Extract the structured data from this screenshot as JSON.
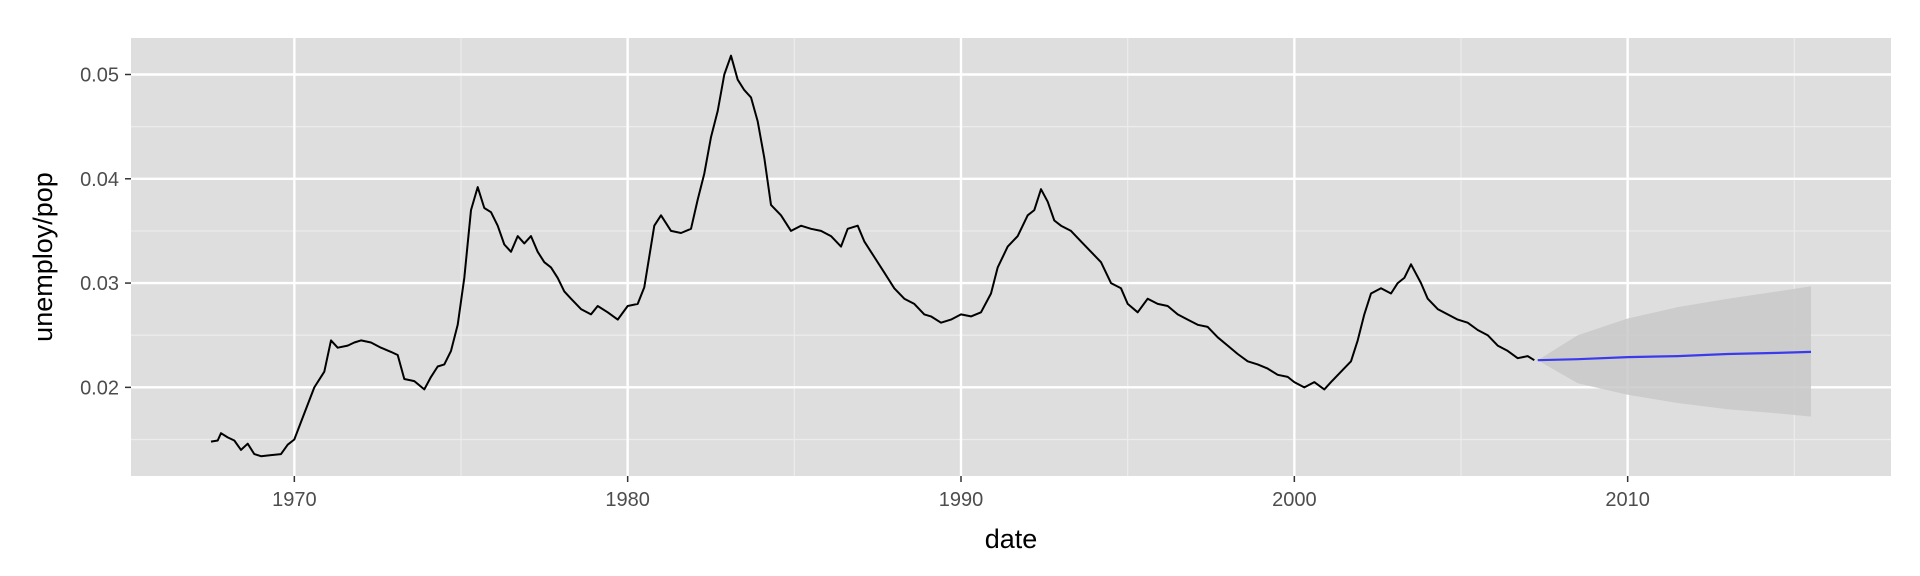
{
  "chart_data": {
    "type": "line",
    "title": "",
    "xlabel": "date",
    "ylabel": "unemploy/pop",
    "xlim": [
      1965.1,
      2017.9
    ],
    "ylim": [
      0.0115,
      0.0535
    ],
    "x_ticks": [
      1970,
      1980,
      1990,
      2000,
      2010
    ],
    "y_ticks": [
      0.02,
      0.03,
      0.04,
      0.05
    ],
    "x_tick_labels": [
      "1970",
      "1980",
      "1990",
      "2000",
      "2010"
    ],
    "y_tick_labels": [
      "0.02",
      "0.03",
      "0.04",
      "0.05"
    ],
    "grid": true,
    "legend": "none",
    "colors": {
      "panel": "#dedede",
      "grid_major": "#ffffff",
      "grid_minor": "#ececec",
      "observed": "#000000",
      "forecast": "#3b3bec",
      "forecast_band": "#c9c9c9"
    },
    "series": [
      {
        "role": "observed",
        "x": [
          1967.5,
          1967.7,
          1967.8,
          1968.0,
          1968.2,
          1968.4,
          1968.6,
          1968.8,
          1969.0,
          1969.3,
          1969.6,
          1969.8,
          1970.0,
          1970.3,
          1970.6,
          1970.9,
          1971.1,
          1971.3,
          1971.6,
          1971.8,
          1972.0,
          1972.3,
          1972.6,
          1972.9,
          1973.1,
          1973.3,
          1973.6,
          1973.9,
          1974.1,
          1974.3,
          1974.5,
          1974.7,
          1974.9,
          1975.1,
          1975.3,
          1975.5,
          1975.7,
          1975.9,
          1976.1,
          1976.3,
          1976.5,
          1976.7,
          1976.9,
          1977.1,
          1977.3,
          1977.5,
          1977.7,
          1977.9,
          1978.1,
          1978.3,
          1978.6,
          1978.9,
          1979.1,
          1979.4,
          1979.7,
          1980.0,
          1980.3,
          1980.5,
          1980.8,
          1981.0,
          1981.3,
          1981.6,
          1981.9,
          1982.1,
          1982.3,
          1982.5,
          1982.7,
          1982.9,
          1983.1,
          1983.3,
          1983.5,
          1983.7,
          1983.9,
          1984.1,
          1984.3,
          1984.6,
          1984.9,
          1985.2,
          1985.5,
          1985.8,
          1986.1,
          1986.4,
          1986.6,
          1986.9,
          1987.1,
          1987.4,
          1987.7,
          1988.0,
          1988.3,
          1988.6,
          1988.9,
          1989.1,
          1989.4,
          1989.7,
          1990.0,
          1990.3,
          1990.6,
          1990.9,
          1991.1,
          1991.4,
          1991.7,
          1992.0,
          1992.2,
          1992.4,
          1992.6,
          1992.8,
          1993.0,
          1993.3,
          1993.6,
          1993.9,
          1994.2,
          1994.5,
          1994.8,
          1995.0,
          1995.3,
          1995.6,
          1995.9,
          1996.2,
          1996.5,
          1996.8,
          1997.1,
          1997.4,
          1997.7,
          1998.0,
          1998.3,
          1998.6,
          1998.9,
          1999.2,
          1999.5,
          1999.8,
          2000.0,
          2000.3,
          2000.6,
          2000.9,
          2001.1,
          2001.4,
          2001.7,
          2001.9,
          2002.1,
          2002.3,
          2002.6,
          2002.9,
          2003.1,
          2003.3,
          2003.5,
          2003.8,
          2004.0,
          2004.3,
          2004.6,
          2004.9,
          2005.2,
          2005.5,
          2005.8,
          2006.1,
          2006.4,
          2006.7,
          2007.0,
          2007.2
        ],
        "y": [
          0.0148,
          0.0149,
          0.0156,
          0.0152,
          0.0149,
          0.014,
          0.0146,
          0.0136,
          0.0134,
          0.0135,
          0.0136,
          0.0145,
          0.015,
          0.0175,
          0.02,
          0.0215,
          0.0245,
          0.0238,
          0.024,
          0.0243,
          0.0245,
          0.0243,
          0.0238,
          0.0234,
          0.0231,
          0.0208,
          0.0206,
          0.0198,
          0.021,
          0.022,
          0.0222,
          0.0235,
          0.026,
          0.0305,
          0.037,
          0.0392,
          0.0372,
          0.0368,
          0.0355,
          0.0337,
          0.033,
          0.0345,
          0.0338,
          0.0345,
          0.033,
          0.032,
          0.0315,
          0.0305,
          0.0292,
          0.0285,
          0.0275,
          0.027,
          0.0278,
          0.0272,
          0.0265,
          0.0278,
          0.028,
          0.0296,
          0.0355,
          0.0365,
          0.035,
          0.0348,
          0.0352,
          0.038,
          0.0405,
          0.044,
          0.0465,
          0.05,
          0.0518,
          0.0495,
          0.0485,
          0.0478,
          0.0455,
          0.042,
          0.0375,
          0.0365,
          0.035,
          0.0355,
          0.0352,
          0.035,
          0.0345,
          0.0335,
          0.0352,
          0.0355,
          0.034,
          0.0325,
          0.031,
          0.0295,
          0.0285,
          0.028,
          0.027,
          0.0268,
          0.0262,
          0.0265,
          0.027,
          0.0268,
          0.0272,
          0.029,
          0.0315,
          0.0335,
          0.0345,
          0.0365,
          0.037,
          0.039,
          0.0378,
          0.036,
          0.0355,
          0.035,
          0.034,
          0.033,
          0.032,
          0.03,
          0.0295,
          0.028,
          0.0272,
          0.0285,
          0.028,
          0.0278,
          0.027,
          0.0265,
          0.026,
          0.0258,
          0.0248,
          0.024,
          0.0232,
          0.0225,
          0.0222,
          0.0218,
          0.0212,
          0.021,
          0.0205,
          0.02,
          0.0205,
          0.0198,
          0.0205,
          0.0215,
          0.0225,
          0.0245,
          0.027,
          0.029,
          0.0295,
          0.029,
          0.03,
          0.0305,
          0.0318,
          0.03,
          0.0285,
          0.0275,
          0.027,
          0.0265,
          0.0262,
          0.0255,
          0.025,
          0.024,
          0.0235,
          0.0228,
          0.023,
          0.0226
        ]
      },
      {
        "role": "forecast",
        "x": [
          2007.3,
          2008.5,
          2010.0,
          2011.5,
          2013.0,
          2014.5,
          2015.5
        ],
        "y": [
          0.0226,
          0.0227,
          0.0229,
          0.023,
          0.0232,
          0.0233,
          0.0234
        ],
        "lower": [
          0.0226,
          0.0204,
          0.0193,
          0.0185,
          0.0179,
          0.0175,
          0.0172
        ],
        "upper": [
          0.0226,
          0.025,
          0.0266,
          0.0277,
          0.0285,
          0.0292,
          0.0297
        ]
      }
    ]
  }
}
